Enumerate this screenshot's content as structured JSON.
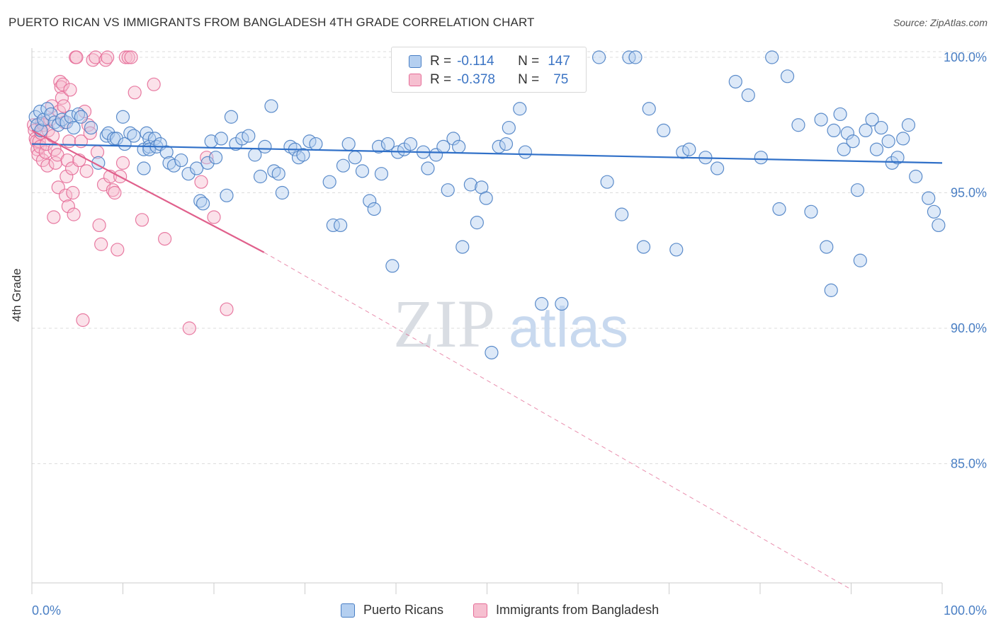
{
  "title": "PUERTO RICAN VS IMMIGRANTS FROM BANGLADESH 4TH GRADE CORRELATION CHART",
  "source": "Source: ZipAtlas.com",
  "watermark": {
    "part1": "ZIP",
    "part2": "atlas"
  },
  "colors": {
    "blue": "#4a7fc4",
    "blue_fill": "#b4cff0",
    "blue_line": "#3070c8",
    "pink": "#e56d98",
    "pink_fill": "#f6bfd0",
    "pink_line": "#e0608c",
    "grid": "#dddddd",
    "axis": "#cccccc"
  },
  "legend": {
    "rows": [
      {
        "r_label": "R =",
        "r_value": "-0.114",
        "n_label": "N =",
        "n_value": "147",
        "color": "blue"
      },
      {
        "r_label": "R =",
        "r_value": "-0.378",
        "n_label": "N =",
        "n_value": "75",
        "color": "pink"
      }
    ],
    "series": [
      "Puerto Ricans",
      "Immigrants from Bangladesh"
    ]
  },
  "chart_data": {
    "type": "scatter",
    "title": "PUERTO RICAN VS IMMIGRANTS FROM BANGLADESH 4TH GRADE CORRELATION CHART",
    "xlabel": "",
    "ylabel": "4th Grade",
    "xlim": [
      0,
      100
    ],
    "ylim": [
      80.8,
      100.5
    ],
    "x_tick_labels": [
      "0.0%",
      "100.0%"
    ],
    "y_ticks": [
      85,
      90,
      95,
      100
    ],
    "y_tick_labels": [
      "85.0%",
      "90.0%",
      "95.0%",
      "100.0%"
    ],
    "grid": true,
    "series": [
      {
        "name": "Puerto Ricans",
        "color": "blue",
        "trend": {
          "x": [
            0,
            100
          ],
          "y": [
            96.8,
            96.1
          ],
          "dashed_until": 100
        },
        "points": [
          [
            0.4,
            97.8
          ],
          [
            0.6,
            97.5
          ],
          [
            0.9,
            98.0
          ],
          [
            1.0,
            97.3
          ],
          [
            1.3,
            97.7
          ],
          [
            1.7,
            98.1
          ],
          [
            2.1,
            97.9
          ],
          [
            2.5,
            97.6
          ],
          [
            2.9,
            97.5
          ],
          [
            3.3,
            97.7
          ],
          [
            3.8,
            97.6
          ],
          [
            4.3,
            97.8
          ],
          [
            4.6,
            97.4
          ],
          [
            5.1,
            97.9
          ],
          [
            5.4,
            97.8
          ],
          [
            6.5,
            97.4
          ],
          [
            7.3,
            96.1
          ],
          [
            8.2,
            97.1
          ],
          [
            8.4,
            97.2
          ],
          [
            9.0,
            97.0
          ],
          [
            9.3,
            97.0
          ],
          [
            10.0,
            97.8
          ],
          [
            10.2,
            96.8
          ],
          [
            10.8,
            97.2
          ],
          [
            11.2,
            97.1
          ],
          [
            12.3,
            96.6
          ],
          [
            12.3,
            95.9
          ],
          [
            12.6,
            97.2
          ],
          [
            12.9,
            97.0
          ],
          [
            12.9,
            96.7
          ],
          [
            12.9,
            96.6
          ],
          [
            13.5,
            97.0
          ],
          [
            13.7,
            96.7
          ],
          [
            14.1,
            96.8
          ],
          [
            14.8,
            96.5
          ],
          [
            15.1,
            96.1
          ],
          [
            15.6,
            96.0
          ],
          [
            16.4,
            96.2
          ],
          [
            17.2,
            95.7
          ],
          [
            18.1,
            95.9
          ],
          [
            18.5,
            94.7
          ],
          [
            18.8,
            94.6
          ],
          [
            19.3,
            96.1
          ],
          [
            19.7,
            96.9
          ],
          [
            20.2,
            96.3
          ],
          [
            20.8,
            97.0
          ],
          [
            21.4,
            94.9
          ],
          [
            21.9,
            97.8
          ],
          [
            22.4,
            96.8
          ],
          [
            23.1,
            97.0
          ],
          [
            23.8,
            97.1
          ],
          [
            24.5,
            96.4
          ],
          [
            25.1,
            95.6
          ],
          [
            25.6,
            96.7
          ],
          [
            26.3,
            98.2
          ],
          [
            26.6,
            95.8
          ],
          [
            27.1,
            95.7
          ],
          [
            27.5,
            95.0
          ],
          [
            28.4,
            96.7
          ],
          [
            28.9,
            96.6
          ],
          [
            29.3,
            96.3
          ],
          [
            29.8,
            96.4
          ],
          [
            30.5,
            96.9
          ],
          [
            31.2,
            96.8
          ],
          [
            32.7,
            95.4
          ],
          [
            33.1,
            93.8
          ],
          [
            33.9,
            93.8
          ],
          [
            34.2,
            96.0
          ],
          [
            34.8,
            96.8
          ],
          [
            35.5,
            96.3
          ],
          [
            36.3,
            95.8
          ],
          [
            37.1,
            94.7
          ],
          [
            37.6,
            94.4
          ],
          [
            38.1,
            96.7
          ],
          [
            38.4,
            95.7
          ],
          [
            39.1,
            96.8
          ],
          [
            39.6,
            92.3
          ],
          [
            40.2,
            96.5
          ],
          [
            40.9,
            96.6
          ],
          [
            41.6,
            96.8
          ],
          [
            42.2,
            100.0
          ],
          [
            43.0,
            96.5
          ],
          [
            43.5,
            95.9
          ],
          [
            44.4,
            96.4
          ],
          [
            45.2,
            96.7
          ],
          [
            45.7,
            95.1
          ],
          [
            46.3,
            97.0
          ],
          [
            46.9,
            96.7
          ],
          [
            47.3,
            93.0
          ],
          [
            48.2,
            95.3
          ],
          [
            48.9,
            93.9
          ],
          [
            49.4,
            95.2
          ],
          [
            49.9,
            94.8
          ],
          [
            50.5,
            89.1
          ],
          [
            51.3,
            96.7
          ],
          [
            52.1,
            96.8
          ],
          [
            52.4,
            97.4
          ],
          [
            53.6,
            98.1
          ],
          [
            54.2,
            96.5
          ],
          [
            55.1,
            100.0
          ],
          [
            56.0,
            90.9
          ],
          [
            58.2,
            90.9
          ],
          [
            62.3,
            100.0
          ],
          [
            63.2,
            95.4
          ],
          [
            64.8,
            94.2
          ],
          [
            65.6,
            100.0
          ],
          [
            66.3,
            100.0
          ],
          [
            67.2,
            93.0
          ],
          [
            67.8,
            98.1
          ],
          [
            69.4,
            97.3
          ],
          [
            70.8,
            92.9
          ],
          [
            71.5,
            96.5
          ],
          [
            72.2,
            96.6
          ],
          [
            74.0,
            96.3
          ],
          [
            75.3,
            95.9
          ],
          [
            77.3,
            99.1
          ],
          [
            78.7,
            98.6
          ],
          [
            80.1,
            96.3
          ],
          [
            81.3,
            100.0
          ],
          [
            82.1,
            94.4
          ],
          [
            83.0,
            99.3
          ],
          [
            84.2,
            97.5
          ],
          [
            85.6,
            94.3
          ],
          [
            86.7,
            97.7
          ],
          [
            87.3,
            93.0
          ],
          [
            87.8,
            91.4
          ],
          [
            88.1,
            97.3
          ],
          [
            88.8,
            97.9
          ],
          [
            89.2,
            96.6
          ],
          [
            89.6,
            97.2
          ],
          [
            90.2,
            96.9
          ],
          [
            90.7,
            95.1
          ],
          [
            91.0,
            92.5
          ],
          [
            91.6,
            97.3
          ],
          [
            92.3,
            97.7
          ],
          [
            92.8,
            96.6
          ],
          [
            93.3,
            97.4
          ],
          [
            94.1,
            96.9
          ],
          [
            94.5,
            96.1
          ],
          [
            95.1,
            96.3
          ],
          [
            95.7,
            97.0
          ],
          [
            96.3,
            97.5
          ],
          [
            97.1,
            95.6
          ],
          [
            98.5,
            94.8
          ],
          [
            99.1,
            94.3
          ],
          [
            99.6,
            93.8
          ]
        ]
      },
      {
        "name": "Immigrants from Bangladesh",
        "color": "pink",
        "trend": {
          "x": [
            0,
            25.5,
            100
          ],
          "y": [
            97.3,
            92.8,
            80.8
          ],
          "solid_until": 25.5
        },
        "points": [
          [
            0.2,
            97.5
          ],
          [
            0.3,
            97.3
          ],
          [
            0.4,
            97.0
          ],
          [
            0.5,
            96.9
          ],
          [
            0.6,
            96.6
          ],
          [
            0.7,
            96.4
          ],
          [
            0.8,
            96.9
          ],
          [
            0.9,
            96.7
          ],
          [
            1.0,
            97.2
          ],
          [
            1.1,
            97.6
          ],
          [
            1.2,
            96.2
          ],
          [
            1.3,
            97.5
          ],
          [
            1.5,
            96.5
          ],
          [
            1.6,
            96.8
          ],
          [
            1.7,
            96.0
          ],
          [
            1.8,
            97.3
          ],
          [
            2.0,
            97.7
          ],
          [
            2.2,
            98.2
          ],
          [
            2.3,
            97.1
          ],
          [
            2.4,
            94.1
          ],
          [
            2.5,
            96.6
          ],
          [
            2.6,
            96.1
          ],
          [
            2.8,
            96.4
          ],
          [
            2.9,
            95.2
          ],
          [
            3.0,
            98.0
          ],
          [
            3.1,
            99.1
          ],
          [
            3.2,
            98.9
          ],
          [
            3.3,
            98.5
          ],
          [
            3.4,
            99.0
          ],
          [
            3.5,
            98.2
          ],
          [
            3.6,
            97.6
          ],
          [
            3.7,
            94.9
          ],
          [
            3.8,
            95.6
          ],
          [
            3.9,
            96.2
          ],
          [
            4.0,
            94.5
          ],
          [
            4.1,
            96.9
          ],
          [
            4.2,
            98.8
          ],
          [
            4.4,
            95.9
          ],
          [
            4.5,
            95.0
          ],
          [
            4.6,
            94.2
          ],
          [
            4.8,
            100.0
          ],
          [
            4.9,
            100.0
          ],
          [
            5.2,
            96.2
          ],
          [
            5.4,
            96.9
          ],
          [
            5.6,
            90.3
          ],
          [
            5.8,
            98.0
          ],
          [
            6.0,
            95.8
          ],
          [
            6.2,
            97.5
          ],
          [
            6.4,
            97.2
          ],
          [
            6.7,
            99.9
          ],
          [
            7.0,
            100.0
          ],
          [
            7.2,
            96.5
          ],
          [
            7.4,
            93.8
          ],
          [
            7.6,
            93.1
          ],
          [
            7.9,
            95.3
          ],
          [
            8.1,
            99.9
          ],
          [
            8.3,
            100.0
          ],
          [
            8.6,
            95.6
          ],
          [
            8.9,
            95.1
          ],
          [
            9.1,
            95.0
          ],
          [
            9.4,
            92.9
          ],
          [
            9.7,
            95.6
          ],
          [
            10.0,
            96.1
          ],
          [
            10.3,
            100.0
          ],
          [
            10.6,
            100.0
          ],
          [
            10.9,
            100.0
          ],
          [
            11.3,
            98.7
          ],
          [
            12.1,
            94.0
          ],
          [
            13.4,
            99.0
          ],
          [
            14.6,
            93.3
          ],
          [
            17.3,
            90.0
          ],
          [
            18.6,
            95.4
          ],
          [
            19.2,
            96.3
          ],
          [
            20.0,
            94.1
          ],
          [
            21.4,
            90.7
          ]
        ]
      }
    ]
  }
}
